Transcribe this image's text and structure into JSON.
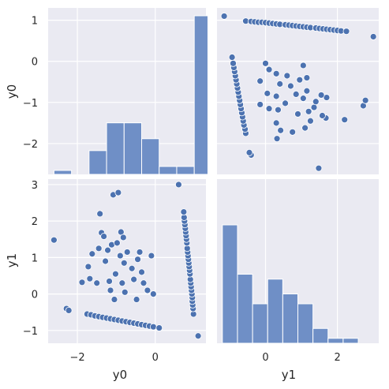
{
  "chart_data": {
    "type": "pairplot",
    "variables": [
      "y0",
      "y1"
    ],
    "style": {
      "panel_background": "#EAEAF2",
      "grid_color": "#FFFFFF",
      "marker_color": "#4C72B0",
      "bar_color": "#6F8FC6",
      "bar_edge": "#FFFFFF",
      "grid": true
    },
    "axes": {
      "y0": {
        "label": "y0",
        "range": [
          -2.75,
          1.3
        ],
        "ticks": [
          -2,
          0
        ],
        "ticks_y": [
          -2,
          -1,
          0,
          1
        ]
      },
      "y1": {
        "label": "y1",
        "range": [
          -1.35,
          3.15
        ],
        "ticks": [
          0,
          2
        ],
        "ticks_y": [
          -1,
          0,
          1,
          2,
          3
        ]
      }
    },
    "hist_y0": {
      "type": "bar",
      "bin_edges": [
        -2.6,
        -2.15,
        -1.7,
        -1.25,
        -0.8,
        -0.35,
        0.1,
        0.55,
        1.0,
        1.35
      ],
      "counts": [
        1,
        0,
        6,
        13,
        13,
        9,
        2,
        2,
        40
      ]
    },
    "hist_y1": {
      "type": "bar",
      "bin_edges": [
        -1.2,
        -0.78,
        -0.36,
        0.06,
        0.48,
        0.9,
        1.32,
        1.74,
        2.16,
        2.58,
        3.0
      ],
      "counts": [
        24,
        14,
        8,
        13,
        10,
        8,
        3,
        1,
        1,
        0
      ]
    },
    "scatter": {
      "type": "scatter",
      "points": [
        [
          1.1,
          -1.15
        ],
        [
          0.98,
          -0.55
        ],
        [
          0.97,
          -0.4
        ],
        [
          0.96,
          -0.3
        ],
        [
          0.95,
          -0.2
        ],
        [
          0.95,
          -0.1
        ],
        [
          0.94,
          0.0
        ],
        [
          0.93,
          0.1
        ],
        [
          0.92,
          0.2
        ],
        [
          0.91,
          0.3
        ],
        [
          0.9,
          0.4
        ],
        [
          0.89,
          0.55
        ],
        [
          0.88,
          0.65
        ],
        [
          0.87,
          0.75
        ],
        [
          0.86,
          0.85
        ],
        [
          0.85,
          0.95
        ],
        [
          0.84,
          1.05
        ],
        [
          0.83,
          1.15
        ],
        [
          0.82,
          1.25
        ],
        [
          0.81,
          1.4
        ],
        [
          0.8,
          1.5
        ],
        [
          0.79,
          1.6
        ],
        [
          0.78,
          1.7
        ],
        [
          0.77,
          1.8
        ],
        [
          0.76,
          1.9
        ],
        [
          0.75,
          2.0
        ],
        [
          0.74,
          2.1
        ],
        [
          0.73,
          2.25
        ],
        [
          0.6,
          3.0
        ],
        [
          -2.6,
          1.48
        ],
        [
          -2.28,
          -0.4
        ],
        [
          -2.22,
          -0.45
        ],
        [
          -1.75,
          -0.55
        ],
        [
          -1.65,
          -0.57
        ],
        [
          -1.55,
          -0.6
        ],
        [
          -1.45,
          -0.62
        ],
        [
          -1.35,
          -0.64
        ],
        [
          -1.25,
          -0.66
        ],
        [
          -1.15,
          -0.68
        ],
        [
          -1.05,
          -0.7
        ],
        [
          -0.95,
          -0.72
        ],
        [
          -0.85,
          -0.74
        ],
        [
          -0.75,
          -0.76
        ],
        [
          -0.65,
          -0.78
        ],
        [
          -0.55,
          -0.8
        ],
        [
          -0.45,
          -0.82
        ],
        [
          -0.35,
          -0.84
        ],
        [
          -0.25,
          -0.86
        ],
        [
          -0.15,
          -0.88
        ],
        [
          -0.05,
          -0.9
        ],
        [
          0.1,
          -0.93
        ],
        [
          -1.88,
          0.32
        ],
        [
          -1.72,
          0.75
        ],
        [
          -1.68,
          0.42
        ],
        [
          -1.62,
          1.1
        ],
        [
          -1.5,
          0.3
        ],
        [
          -1.45,
          1.25
        ],
        [
          -1.42,
          2.2
        ],
        [
          -1.38,
          1.68
        ],
        [
          -1.32,
          1.58
        ],
        [
          -1.28,
          0.9
        ],
        [
          -1.22,
          1.2
        ],
        [
          -1.18,
          0.35
        ],
        [
          -1.15,
          0.1
        ],
        [
          -1.12,
          1.35
        ],
        [
          -1.08,
          2.72
        ],
        [
          -1.05,
          -0.15
        ],
        [
          -1.02,
          0.55
        ],
        [
          -0.98,
          1.4
        ],
        [
          -0.95,
          2.78
        ],
        [
          -0.9,
          1.05
        ],
        [
          -0.88,
          1.7
        ],
        [
          -0.85,
          0.3
        ],
        [
          -0.82,
          1.55
        ],
        [
          -0.8,
          0.85
        ],
        [
          -0.78,
          0.05
        ],
        [
          -0.72,
          1.15
        ],
        [
          -0.6,
          0.7
        ],
        [
          -0.55,
          0.4
        ],
        [
          -0.48,
          -0.15
        ],
        [
          -0.45,
          0.95
        ],
        [
          -0.4,
          1.15
        ],
        [
          -0.35,
          0.6
        ],
        [
          -0.3,
          0.3
        ],
        [
          -0.2,
          0.1
        ],
        [
          -0.1,
          1.05
        ],
        [
          -0.05,
          0.0
        ]
      ]
    }
  }
}
